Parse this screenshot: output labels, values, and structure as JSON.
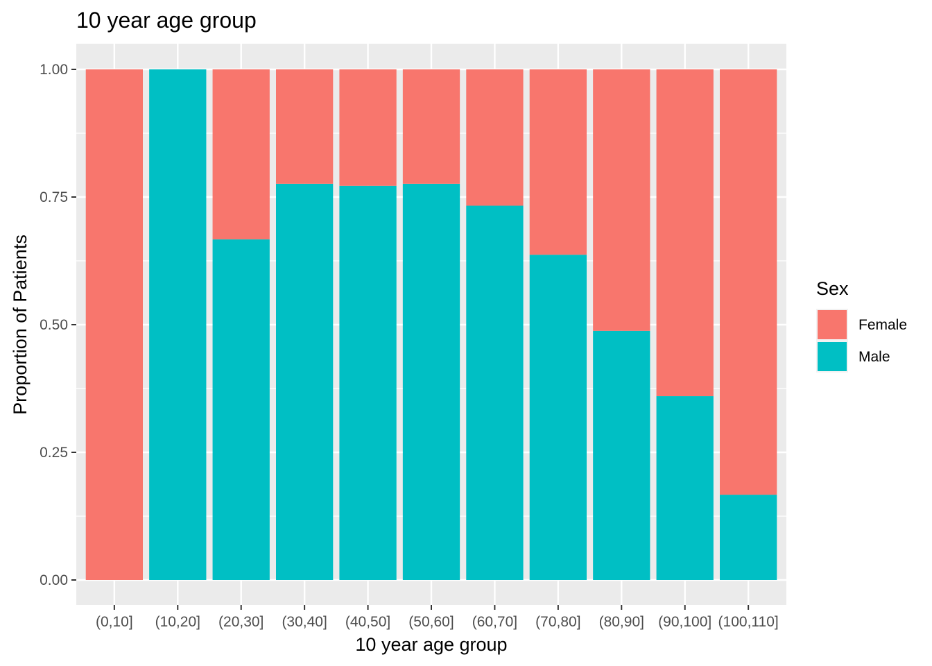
{
  "chart_data": {
    "type": "bar",
    "stacked": true,
    "title": "10 year age group",
    "xlabel": "10 year age group",
    "ylabel": "Proportion of Patients",
    "ylim": [
      0,
      1
    ],
    "yticks": [
      "0.00",
      "0.25",
      "0.50",
      "0.75",
      "1.00"
    ],
    "grid": true,
    "legend_position": "right",
    "legend_title": "Sex",
    "categories": [
      "(0,10]",
      "(10,20]",
      "(20,30]",
      "(30,40]",
      "(40,50]",
      "(50,60]",
      "(60,70]",
      "(70,80]",
      "(80,90]",
      "(90,100]",
      "(100,110]"
    ],
    "series": [
      {
        "name": "Female",
        "color": "#F8766D",
        "values": [
          1.0,
          0.0,
          0.333,
          0.224,
          0.228,
          0.224,
          0.267,
          0.363,
          0.512,
          0.64,
          0.833
        ]
      },
      {
        "name": "Male",
        "color": "#00BFC4",
        "values": [
          0.0,
          1.0,
          0.667,
          0.776,
          0.772,
          0.776,
          0.733,
          0.637,
          0.488,
          0.36,
          0.167
        ]
      }
    ]
  }
}
